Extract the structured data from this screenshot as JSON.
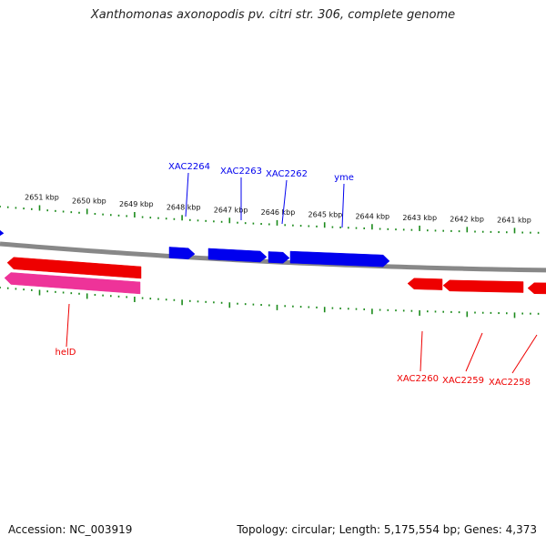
{
  "title": "Xanthomonas axonopodis pv. citri str. 306, complete genome",
  "footer": {
    "accession": "Accession: NC_003919",
    "summary": "Topology: circular; Length: 5,175,554 bp; Genes: 4,373"
  },
  "colors": {
    "forward_gene": "#0000ee",
    "reverse_gene": "#ee0000",
    "rna_gene": "#ee3399",
    "backbone": "#888888",
    "tick": "#1a8a1a"
  },
  "scale": {
    "unit": "kbp",
    "labels": [
      "2651 kbp",
      "2650 kbp",
      "2649 kbp",
      "2648 kbp",
      "2647 kbp",
      "2646 kbp",
      "2645 kbp",
      "2644 kbp",
      "2643 kbp",
      "2642 kbp",
      "2641 kbp"
    ]
  },
  "genes": {
    "forward": [
      {
        "label": "XAC2264"
      },
      {
        "label": "XAC2263"
      },
      {
        "label": "XAC2262"
      },
      {
        "label": "yme"
      }
    ],
    "reverse": [
      {
        "label": "helD"
      },
      {
        "label": "XAC2260"
      },
      {
        "label": "XAC2259"
      },
      {
        "label": "XAC2258"
      }
    ]
  }
}
